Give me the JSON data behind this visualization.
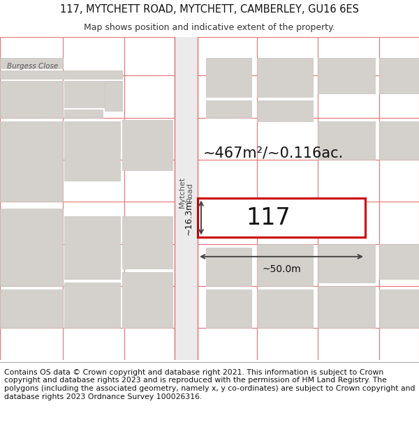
{
  "title_line1": "117, MYTCHETT ROAD, MYTCHETT, CAMBERLEY, GU16 6ES",
  "title_line2": "Map shows position and indicative extent of the property.",
  "footer_text": "Contains OS data © Crown copyright and database right 2021. This information is subject to Crown copyright and database rights 2023 and is reproduced with the permission of HM Land Registry. The polygons (including the associated geometry, namely x, y co-ordinates) are subject to Crown copyright and database rights 2023 Ordnance Survey 100026316.",
  "area_label": "~467m²/~0.116ac.",
  "property_label": "117",
  "width_label": "~50.0m",
  "height_label": "~16.3m",
  "road_label": "Mytchet\nRoad",
  "street_label": "Burgess Close",
  "map_bg": "#ffffff",
  "road_color": "#f0f0f0",
  "building_fill": "#d4d0cc",
  "building_stroke": "#c8c4c0",
  "property_fill": "#ffffff",
  "property_stroke": "#cc0000",
  "grid_color": "#e87070",
  "dim_color": "#444444",
  "title_fontsize": 10.5,
  "subtitle_fontsize": 9,
  "footer_fontsize": 7.8,
  "area_fontsize": 15,
  "prop_label_fontsize": 24,
  "dim_fontsize": 10,
  "road_label_fontsize": 8,
  "street_label_fontsize": 7.5
}
